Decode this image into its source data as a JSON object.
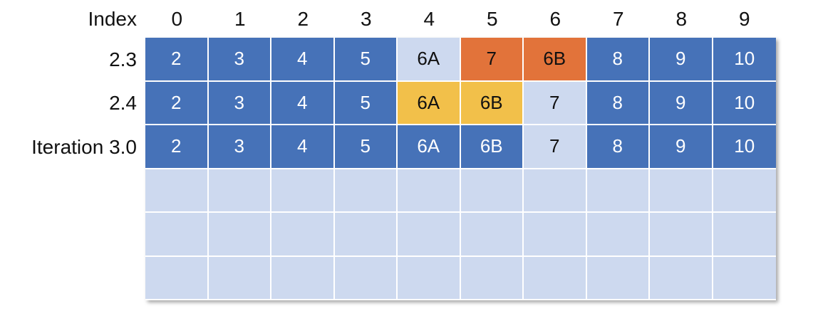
{
  "header": {
    "corner_label": "Index",
    "indices": [
      "0",
      "1",
      "2",
      "3",
      "4",
      "5",
      "6",
      "7",
      "8",
      "9"
    ]
  },
  "colors": {
    "dark_blue": "#4672b8",
    "light_blue": "#cdd9ef",
    "orange": "#e2733a",
    "yellow": "#f2c04a",
    "text_light": "#ffffff",
    "text_dark": "#111111"
  },
  "rows": [
    {
      "label": "2.3",
      "cells": [
        {
          "text": "2",
          "color": "dark_blue"
        },
        {
          "text": "3",
          "color": "dark_blue"
        },
        {
          "text": "4",
          "color": "dark_blue"
        },
        {
          "text": "5",
          "color": "dark_blue"
        },
        {
          "text": "6A",
          "color": "light_blue"
        },
        {
          "text": "7",
          "color": "orange"
        },
        {
          "text": "6B",
          "color": "orange"
        },
        {
          "text": "8",
          "color": "dark_blue"
        },
        {
          "text": "9",
          "color": "dark_blue"
        },
        {
          "text": "10",
          "color": "dark_blue"
        }
      ]
    },
    {
      "label": "2.4",
      "cells": [
        {
          "text": "2",
          "color": "dark_blue"
        },
        {
          "text": "3",
          "color": "dark_blue"
        },
        {
          "text": "4",
          "color": "dark_blue"
        },
        {
          "text": "5",
          "color": "dark_blue"
        },
        {
          "text": "6A",
          "color": "yellow"
        },
        {
          "text": "6B",
          "color": "yellow"
        },
        {
          "text": "7",
          "color": "light_blue"
        },
        {
          "text": "8",
          "color": "dark_blue"
        },
        {
          "text": "9",
          "color": "dark_blue"
        },
        {
          "text": "10",
          "color": "dark_blue"
        }
      ]
    },
    {
      "label": "Iteration 3.0",
      "cells": [
        {
          "text": "2",
          "color": "dark_blue"
        },
        {
          "text": "3",
          "color": "dark_blue"
        },
        {
          "text": "4",
          "color": "dark_blue"
        },
        {
          "text": "5",
          "color": "dark_blue"
        },
        {
          "text": "6A",
          "color": "dark_blue"
        },
        {
          "text": "6B",
          "color": "dark_blue"
        },
        {
          "text": "7",
          "color": "light_blue"
        },
        {
          "text": "8",
          "color": "dark_blue"
        },
        {
          "text": "9",
          "color": "dark_blue"
        },
        {
          "text": "10",
          "color": "dark_blue"
        }
      ]
    },
    {
      "label": "",
      "cells": [
        {
          "text": "",
          "color": "light_blue"
        },
        {
          "text": "",
          "color": "light_blue"
        },
        {
          "text": "",
          "color": "light_blue"
        },
        {
          "text": "",
          "color": "light_blue"
        },
        {
          "text": "",
          "color": "light_blue"
        },
        {
          "text": "",
          "color": "light_blue"
        },
        {
          "text": "",
          "color": "light_blue"
        },
        {
          "text": "",
          "color": "light_blue"
        },
        {
          "text": "",
          "color": "light_blue"
        },
        {
          "text": "",
          "color": "light_blue"
        }
      ]
    },
    {
      "label": "",
      "cells": [
        {
          "text": "",
          "color": "light_blue"
        },
        {
          "text": "",
          "color": "light_blue"
        },
        {
          "text": "",
          "color": "light_blue"
        },
        {
          "text": "",
          "color": "light_blue"
        },
        {
          "text": "",
          "color": "light_blue"
        },
        {
          "text": "",
          "color": "light_blue"
        },
        {
          "text": "",
          "color": "light_blue"
        },
        {
          "text": "",
          "color": "light_blue"
        },
        {
          "text": "",
          "color": "light_blue"
        },
        {
          "text": "",
          "color": "light_blue"
        }
      ]
    },
    {
      "label": "",
      "cells": [
        {
          "text": "",
          "color": "light_blue"
        },
        {
          "text": "",
          "color": "light_blue"
        },
        {
          "text": "",
          "color": "light_blue"
        },
        {
          "text": "",
          "color": "light_blue"
        },
        {
          "text": "",
          "color": "light_blue"
        },
        {
          "text": "",
          "color": "light_blue"
        },
        {
          "text": "",
          "color": "light_blue"
        },
        {
          "text": "",
          "color": "light_blue"
        },
        {
          "text": "",
          "color": "light_blue"
        },
        {
          "text": "",
          "color": "light_blue"
        }
      ]
    }
  ]
}
